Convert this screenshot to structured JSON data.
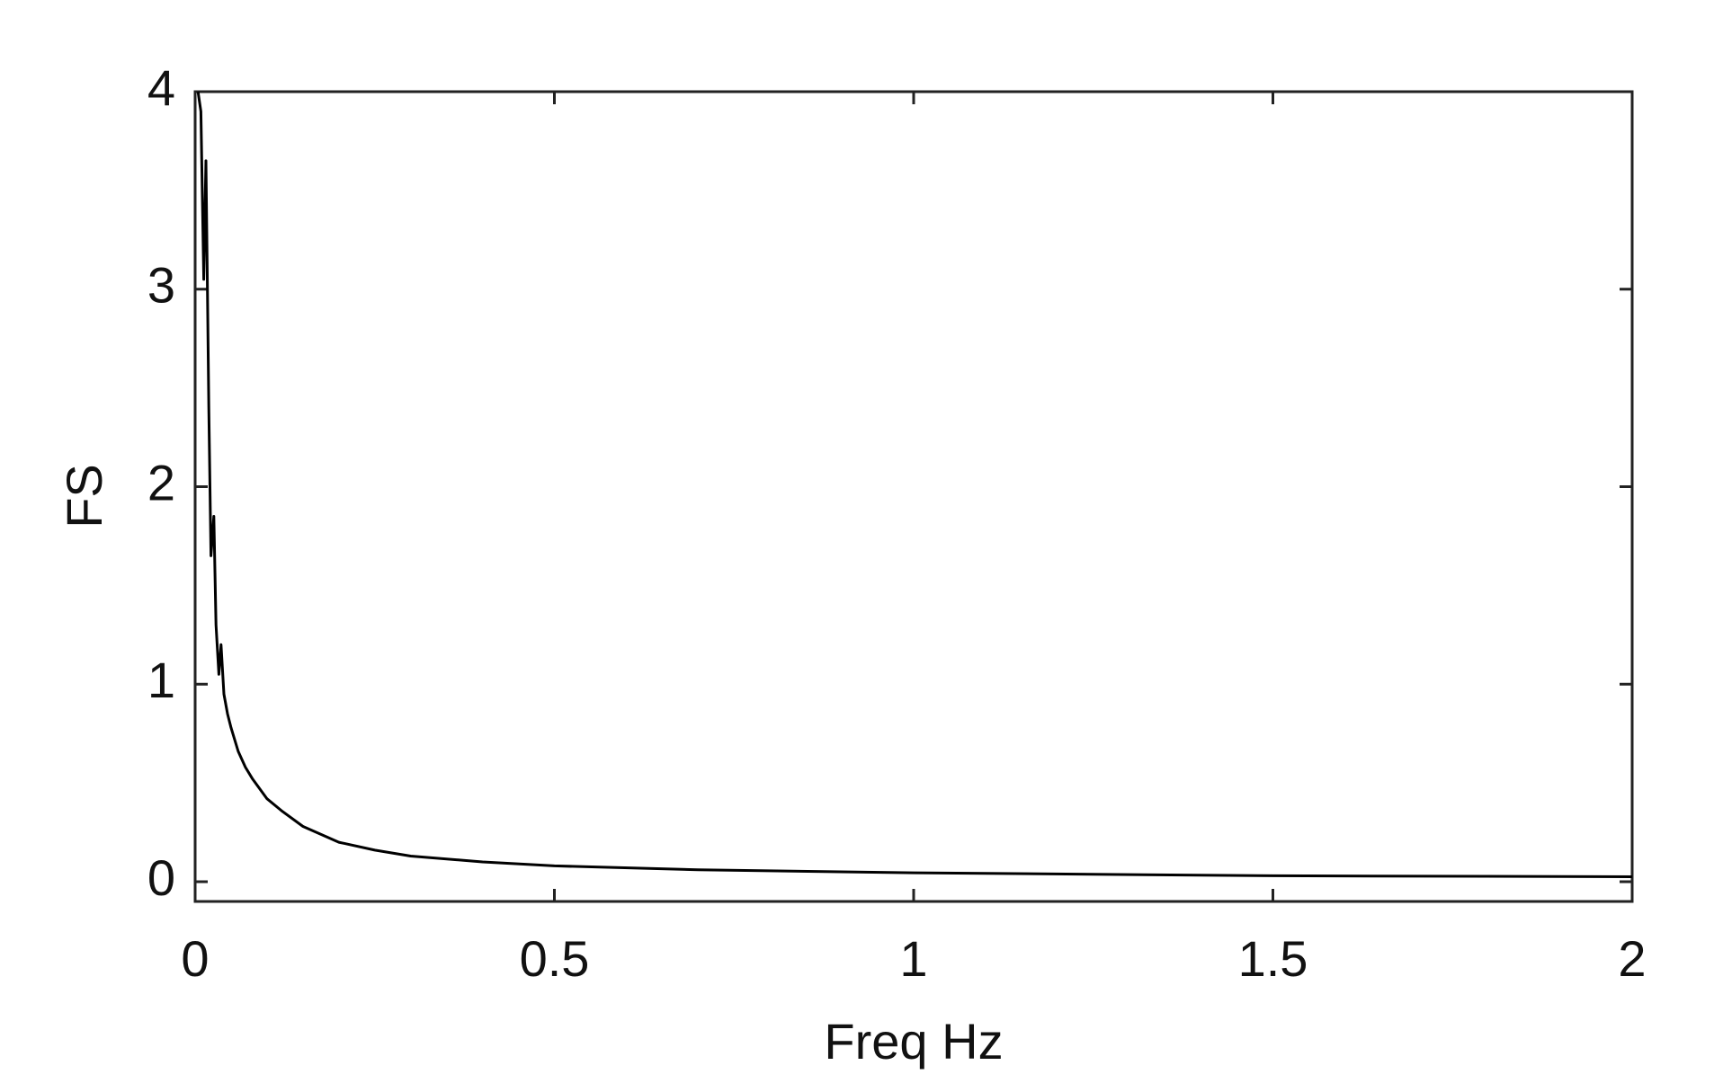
{
  "chart_data": {
    "type": "line",
    "xlabel": "Freq Hz",
    "ylabel": "FS",
    "x": [
      0.004,
      0.008,
      0.012,
      0.015,
      0.019,
      0.022,
      0.026,
      0.029,
      0.033,
      0.036,
      0.04,
      0.045,
      0.05,
      0.06,
      0.07,
      0.08,
      0.1,
      0.12,
      0.15,
      0.2,
      0.25,
      0.3,
      0.4,
      0.5,
      0.7,
      1.0,
      1.5,
      2.0
    ],
    "series": [
      {
        "name": "FS",
        "color": "#000000",
        "values": [
          4.0,
          3.9,
          3.05,
          3.65,
          2.4,
          1.65,
          1.85,
          1.3,
          1.05,
          1.2,
          0.95,
          0.85,
          0.78,
          0.66,
          0.58,
          0.52,
          0.42,
          0.36,
          0.28,
          0.2,
          0.16,
          0.13,
          0.1,
          0.08,
          0.06,
          0.045,
          0.03,
          0.025
        ]
      }
    ],
    "xlim": [
      0,
      2
    ],
    "ylim": [
      -0.1,
      4
    ],
    "xticks": [
      0,
      0.5,
      1,
      1.5,
      2
    ],
    "yticks": [
      0,
      1,
      2,
      3,
      4
    ]
  }
}
